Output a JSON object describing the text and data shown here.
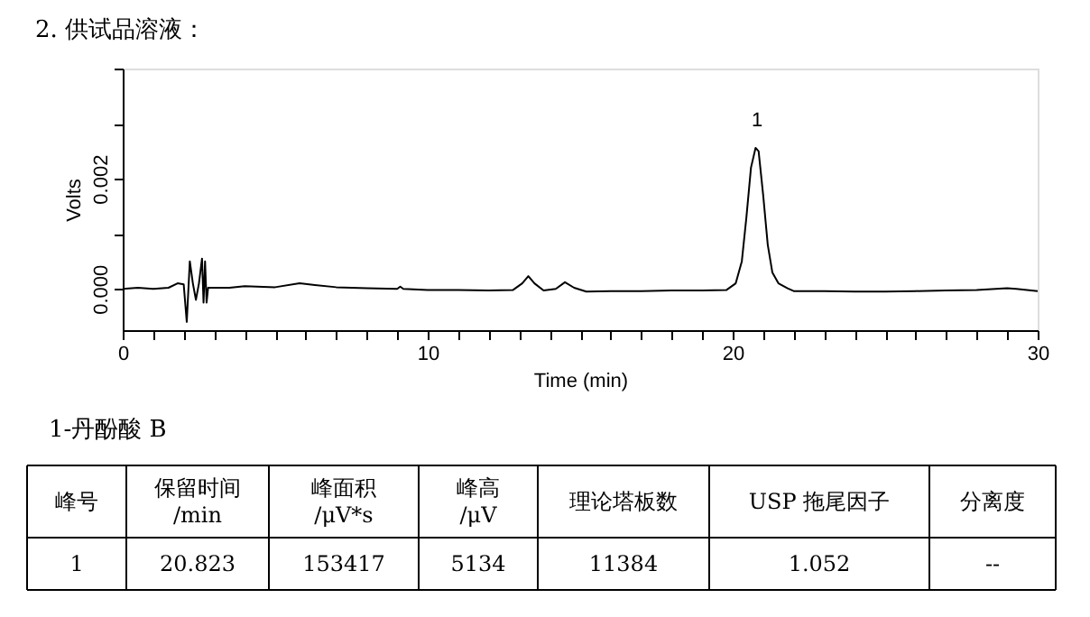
{
  "chart_data": {
    "type": "line",
    "title": "2.   供试品溶液：",
    "xlabel": "Time (min)",
    "ylabel": "Volts",
    "x": [
      0,
      0.5,
      1.0,
      1.5,
      1.8,
      2.0,
      2.1,
      2.2,
      2.3,
      2.4,
      2.5,
      2.6,
      2.65,
      2.7,
      2.75,
      2.8,
      3.5,
      4,
      5,
      5.8,
      6.3,
      7,
      8,
      9,
      9.1,
      9.2,
      10,
      11,
      12,
      12.8,
      13.1,
      13.3,
      13.5,
      13.8,
      14.2,
      14.5,
      14.8,
      15.2,
      16,
      17,
      18,
      19,
      19.8,
      20.1,
      20.3,
      20.45,
      20.6,
      20.75,
      20.85,
      21.0,
      21.15,
      21.3,
      21.5,
      21.8,
      22,
      23,
      24,
      25,
      26,
      27,
      28,
      29,
      29.3,
      30
    ],
    "series": [
      {
        "color": "#000000",
        "values": [
          0,
          2e-05,
          0,
          2e-05,
          0.0001,
          8e-05,
          -0.0006,
          0.0005,
          0.0001,
          -0.0002,
          0.0001,
          0.00055,
          -0.00025,
          0.0005,
          -0.00025,
          2e-05,
          2e-05,
          5e-05,
          3e-05,
          0.0001,
          7e-05,
          3e-05,
          1e-05,
          0,
          4e-05,
          0,
          -2e-05,
          -2e-05,
          -3e-05,
          -2e-05,
          0.0001,
          0.00023,
          0.0001,
          -3e-05,
          0,
          0.00012,
          2e-05,
          -5e-05,
          -4e-05,
          -4e-05,
          -3e-05,
          -3e-05,
          -2e-05,
          0.0001,
          0.0005,
          0.0013,
          0.0022,
          0.00256,
          0.0025,
          0.0017,
          0.0008,
          0.0003,
          0.0001,
          1e-05,
          -4e-05,
          -4e-05,
          -5e-05,
          -5e-05,
          -4e-05,
          -3e-05,
          -2e-05,
          1e-05,
          0,
          -4e-05
        ]
      }
    ],
    "xlim": [
      0,
      30
    ],
    "xticks": [
      0,
      {
        "value": 1,
        "label": null
      },
      {
        "value": 2,
        "label": null
      },
      {
        "value": 3,
        "label": null
      },
      {
        "value": 4,
        "label": null
      },
      {
        "value": 5,
        "label": null
      },
      {
        "value": 6,
        "label": null
      },
      {
        "value": 7,
        "label": null
      },
      {
        "value": 8,
        "label": null
      },
      {
        "value": 9,
        "label": null
      },
      10,
      {
        "value": 11,
        "label": null
      },
      {
        "value": 12,
        "label": null
      },
      {
        "value": 13,
        "label": null
      },
      {
        "value": 14,
        "label": null
      },
      {
        "value": 15,
        "label": null
      },
      {
        "value": 16,
        "label": null
      },
      {
        "value": 17,
        "label": null
      },
      {
        "value": 18,
        "label": null
      },
      {
        "value": 19,
        "label": null
      },
      20,
      {
        "value": 21,
        "label": null
      },
      {
        "value": 22,
        "label": null
      },
      {
        "value": 23,
        "label": null
      },
      {
        "value": 24,
        "label": null
      },
      {
        "value": 25,
        "label": null
      },
      {
        "value": 26,
        "label": null
      },
      {
        "value": 27,
        "label": null
      },
      {
        "value": 28,
        "label": null
      },
      {
        "value": 29,
        "label": null
      },
      30
    ],
    "ylim": [
      -0.00075,
      0.004
    ],
    "yticks": [
      {
        "value": 0,
        "label": "0.000"
      },
      {
        "value": 0.001,
        "label": null
      },
      {
        "value": 0.002,
        "label": "0.002"
      },
      {
        "value": 0.003,
        "label": null
      },
      {
        "value": 0.004,
        "label": null
      }
    ],
    "grid": false,
    "marker": "none",
    "line_style": "solid",
    "annotations": [
      {
        "text": "1",
        "x": 20.8,
        "y": 0.00256
      },
      "1-丹酚酸 B",
      "峰号",
      "保留时间\n/min",
      "峰面积\n/μV*s",
      "峰高\n/μV",
      "理论塔板数",
      "USP 拖尾因子",
      "分离度",
      "1",
      "20.823",
      "153417",
      "5134",
      "11384",
      "1.052",
      "--"
    ]
  }
}
